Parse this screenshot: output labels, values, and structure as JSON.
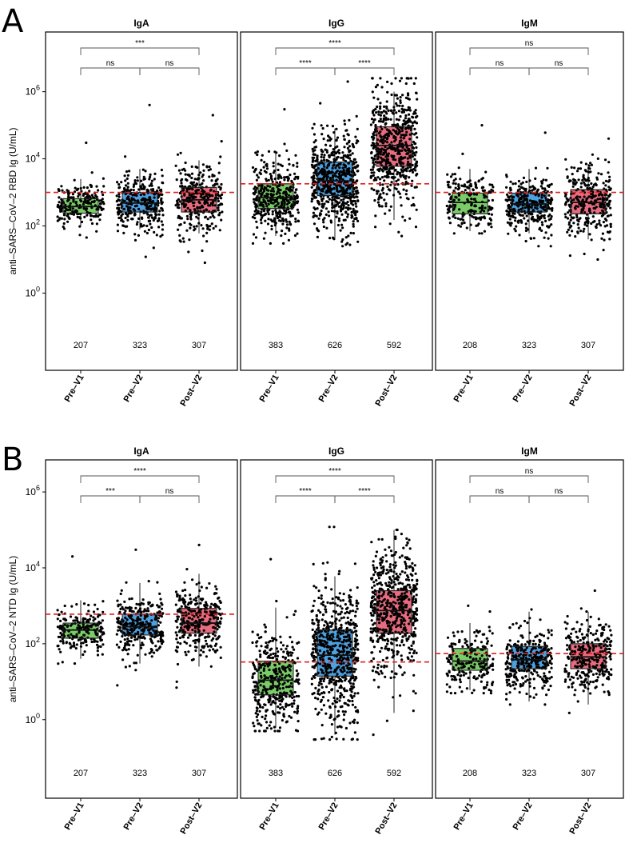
{
  "chart_data": [
    {
      "type": "boxplot",
      "panel_label": "A",
      "ylabel": "anti–SARS–CoV–2 RBD Ig (U/mL)",
      "yscale": "log10",
      "ylim": [
        0.005,
        60000000
      ],
      "y_ticks": [
        {
          "base": "10",
          "exp": "0",
          "value": 1
        },
        {
          "base": "10",
          "exp": "2",
          "value": 100
        },
        {
          "base": "10",
          "exp": "4",
          "value": 10000
        },
        {
          "base": "10",
          "exp": "6",
          "value": 1000000
        }
      ],
      "categories": [
        "Pre–V1",
        "Pre–V2",
        "Post–V2"
      ],
      "colors": [
        "#79cc68",
        "#4da1e0",
        "#e86c7f"
      ],
      "cutoff_color": "#e02020",
      "facets": [
        {
          "title": "IgA",
          "cutoff": 1000,
          "counts": [
            "207",
            "323",
            "307"
          ],
          "boxes": [
            {
              "low": 100,
              "q1": 240,
              "median": 380,
              "q3": 650,
              "high": 2500,
              "scatter_min": 45,
              "scatter_max": 30000
            },
            {
              "low": 80,
              "q1": 260,
              "median": 480,
              "q3": 1000,
              "high": 5000,
              "scatter_min": 12,
              "scatter_max": 400000
            },
            {
              "low": 60,
              "q1": 260,
              "median": 600,
              "q3": 1400,
              "high": 9000,
              "scatter_min": 8,
              "scatter_max": 200000
            }
          ],
          "brackets": [
            {
              "from": 0,
              "to": 1,
              "label": "ns"
            },
            {
              "from": 1,
              "to": 2,
              "label": "ns"
            },
            {
              "from": 0,
              "to": 2,
              "label": "***"
            }
          ]
        },
        {
          "title": "IgG",
          "cutoff": 1800,
          "counts": [
            "383",
            "626",
            "592"
          ],
          "boxes": [
            {
              "low": 50,
              "q1": 330,
              "median": 700,
              "q3": 1800,
              "high": 15000,
              "scatter_min": 30,
              "scatter_max": 300000
            },
            {
              "low": 40,
              "q1": 800,
              "median": 2200,
              "q3": 8000,
              "high": 80000,
              "scatter_min": 25,
              "scatter_max": 2000000
            },
            {
              "low": 150,
              "q1": 6000,
              "median": 25000,
              "q3": 90000,
              "high": 1000000,
              "scatter_min": 50,
              "scatter_max": 2500000
            }
          ],
          "brackets": [
            {
              "from": 0,
              "to": 1,
              "label": "****"
            },
            {
              "from": 1,
              "to": 2,
              "label": "****"
            },
            {
              "from": 0,
              "to": 2,
              "label": "****"
            }
          ]
        },
        {
          "title": "IgM",
          "cutoff": 1000,
          "counts": [
            "208",
            "323",
            "307"
          ],
          "boxes": [
            {
              "low": 70,
              "q1": 230,
              "median": 500,
              "q3": 950,
              "high": 5000,
              "scatter_min": 60,
              "scatter_max": 100000
            },
            {
              "low": 60,
              "q1": 260,
              "median": 450,
              "q3": 950,
              "high": 5000,
              "scatter_min": 25,
              "scatter_max": 60000
            },
            {
              "low": 40,
              "q1": 230,
              "median": 500,
              "q3": 1200,
              "high": 7000,
              "scatter_min": 10,
              "scatter_max": 40000
            }
          ],
          "brackets": [
            {
              "from": 0,
              "to": 1,
              "label": "ns"
            },
            {
              "from": 1,
              "to": 2,
              "label": "ns"
            },
            {
              "from": 0,
              "to": 2,
              "label": "ns"
            }
          ]
        }
      ]
    },
    {
      "type": "boxplot",
      "panel_label": "B",
      "ylabel": "anti–SARS–CoV–2 NTD Ig (U/mL)",
      "yscale": "log10",
      "ylim": [
        0.0085,
        7000000
      ],
      "y_ticks": [
        {
          "base": "10",
          "exp": "0",
          "value": 1
        },
        {
          "base": "10",
          "exp": "2",
          "value": 100
        },
        {
          "base": "10",
          "exp": "4",
          "value": 10000
        },
        {
          "base": "10",
          "exp": "6",
          "value": 1000000
        }
      ],
      "categories": [
        "Pre–V1",
        "Pre–V2",
        "Post–V2"
      ],
      "colors": [
        "#79cc68",
        "#4da1e0",
        "#e86c7f"
      ],
      "cutoff_color": "#e02020",
      "facets": [
        {
          "title": "IgA",
          "cutoff": 600,
          "counts": [
            "207",
            "323",
            "307"
          ],
          "boxes": [
            {
              "low": 40,
              "q1": 140,
              "median": 230,
              "q3": 350,
              "high": 1400,
              "scatter_min": 30,
              "scatter_max": 20000
            },
            {
              "low": 30,
              "q1": 170,
              "median": 280,
              "q3": 600,
              "high": 4000,
              "scatter_min": 8,
              "scatter_max": 30000
            },
            {
              "low": 25,
              "q1": 190,
              "median": 350,
              "q3": 850,
              "high": 7000,
              "scatter_min": 7,
              "scatter_max": 40000
            }
          ],
          "brackets": [
            {
              "from": 0,
              "to": 1,
              "label": "***"
            },
            {
              "from": 1,
              "to": 2,
              "label": "ns"
            },
            {
              "from": 0,
              "to": 2,
              "label": "****"
            }
          ]
        },
        {
          "title": "IgG",
          "cutoff": 33,
          "counts": [
            "383",
            "626",
            "592"
          ],
          "boxes": [
            {
              "low": 0.6,
              "q1": 4.5,
              "median": 11,
              "q3": 35,
              "high": 900,
              "scatter_min": 0.5,
              "scatter_max": 17000
            },
            {
              "low": 0.4,
              "q1": 14,
              "median": 50,
              "q3": 230,
              "high": 6000,
              "scatter_min": 0.3,
              "scatter_max": 120000
            },
            {
              "low": 1.5,
              "q1": 190,
              "median": 750,
              "q3": 2500,
              "high": 100000,
              "scatter_min": 0.4,
              "scatter_max": 100000
            }
          ],
          "brackets": [
            {
              "from": 0,
              "to": 1,
              "label": "****"
            },
            {
              "from": 1,
              "to": 2,
              "label": "****"
            },
            {
              "from": 0,
              "to": 2,
              "label": "****"
            }
          ]
        },
        {
          "title": "IgM",
          "cutoff": 55,
          "counts": [
            "208",
            "323",
            "307"
          ],
          "boxes": [
            {
              "low": 6,
              "q1": 20,
              "median": 35,
              "q3": 75,
              "high": 350,
              "scatter_min": 5,
              "scatter_max": 1000
            },
            {
              "low": 3,
              "q1": 22,
              "median": 38,
              "q3": 85,
              "high": 700,
              "scatter_min": 2.5,
              "scatter_max": 800
            },
            {
              "low": 2.5,
              "q1": 22,
              "median": 45,
              "q3": 100,
              "high": 700,
              "scatter_min": 1.5,
              "scatter_max": 2500
            }
          ],
          "brackets": [
            {
              "from": 0,
              "to": 1,
              "label": "ns"
            },
            {
              "from": 1,
              "to": 2,
              "label": "ns"
            },
            {
              "from": 0,
              "to": 2,
              "label": "ns"
            }
          ]
        }
      ]
    }
  ]
}
